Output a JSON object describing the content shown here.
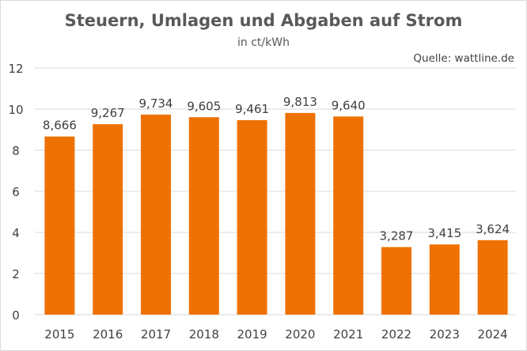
{
  "chart_data": {
    "type": "bar",
    "title": "Steuern, Umlagen und Abgaben auf Strom",
    "subtitle": "in ct/kWh",
    "source": "Quelle: wattline.de",
    "categories": [
      "2015",
      "2016",
      "2017",
      "2018",
      "2019",
      "2020",
      "2021",
      "2022",
      "2023",
      "2024"
    ],
    "values": [
      8.666,
      9.267,
      9.734,
      9.605,
      9.461,
      9.813,
      9.64,
      3.287,
      3.415,
      3.624
    ],
    "data_labels": [
      "8,666",
      "9,267",
      "9,734",
      "9,605",
      "9,461",
      "9,813",
      "9,640",
      "3,287",
      "3,415",
      "3,624"
    ],
    "ylim": [
      0,
      12
    ],
    "yticks": [
      0,
      2,
      4,
      6,
      8,
      10,
      12
    ],
    "grid": true,
    "legend": "none",
    "bar_color": "#EE7203",
    "xlabel": "",
    "ylabel": ""
  }
}
